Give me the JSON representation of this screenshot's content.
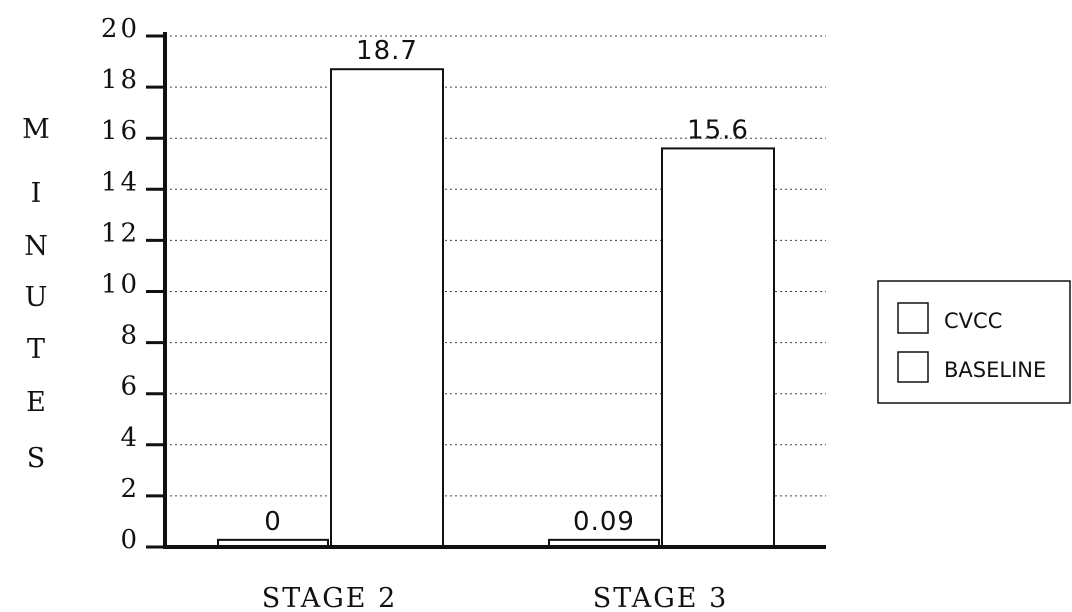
{
  "chart_data": {
    "type": "bar",
    "categories": [
      "STAGE 2",
      "STAGE 3"
    ],
    "series": [
      {
        "name": "CVCC",
        "values": [
          0,
          0.09
        ],
        "data_labels": [
          "0",
          "0.09"
        ]
      },
      {
        "name": "BASELINE",
        "values": [
          18.7,
          15.6
        ],
        "data_labels": [
          "18.7",
          "15.6"
        ]
      }
    ],
    "title": "",
    "xlabel": "",
    "ylabel": "MINUTES",
    "ylim": [
      0,
      20
    ],
    "yticks": [
      "0",
      "2",
      "4",
      "6",
      "8",
      "10",
      "12",
      "14",
      "16",
      "18",
      "20"
    ],
    "grid": true,
    "legend": "right"
  }
}
